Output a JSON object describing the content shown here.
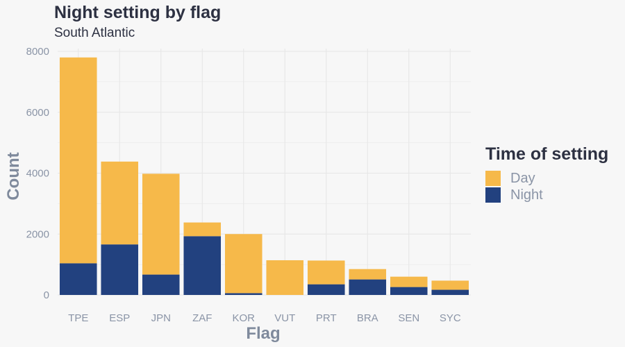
{
  "chart_data": {
    "type": "bar",
    "stacked": true,
    "title": "Night setting by flag",
    "subtitle": "South Atlantic",
    "xlabel": "Flag",
    "ylabel": "Count",
    "ylim": [
      0,
      8000
    ],
    "yticks": [
      0,
      2000,
      4000,
      6000,
      8000
    ],
    "categories": [
      "TPE",
      "ESP",
      "JPN",
      "ZAF",
      "KOR",
      "VUT",
      "PRT",
      "BRA",
      "SEN",
      "SYC"
    ],
    "series": [
      {
        "name": "Night",
        "color": "#22417f",
        "values": [
          1040,
          1660,
          670,
          1930,
          60,
          0,
          350,
          510,
          260,
          170
        ]
      },
      {
        "name": "Day",
        "color": "#f6b94a",
        "values": [
          6760,
          2720,
          3310,
          450,
          1940,
          1140,
          780,
          340,
          340,
          300
        ]
      }
    ],
    "legend": {
      "title": "Time of setting",
      "position": "right",
      "entries": [
        {
          "label": "Day",
          "color": "#f6b94a"
        },
        {
          "label": "Night",
          "color": "#22417f"
        }
      ]
    },
    "grid": true
  }
}
